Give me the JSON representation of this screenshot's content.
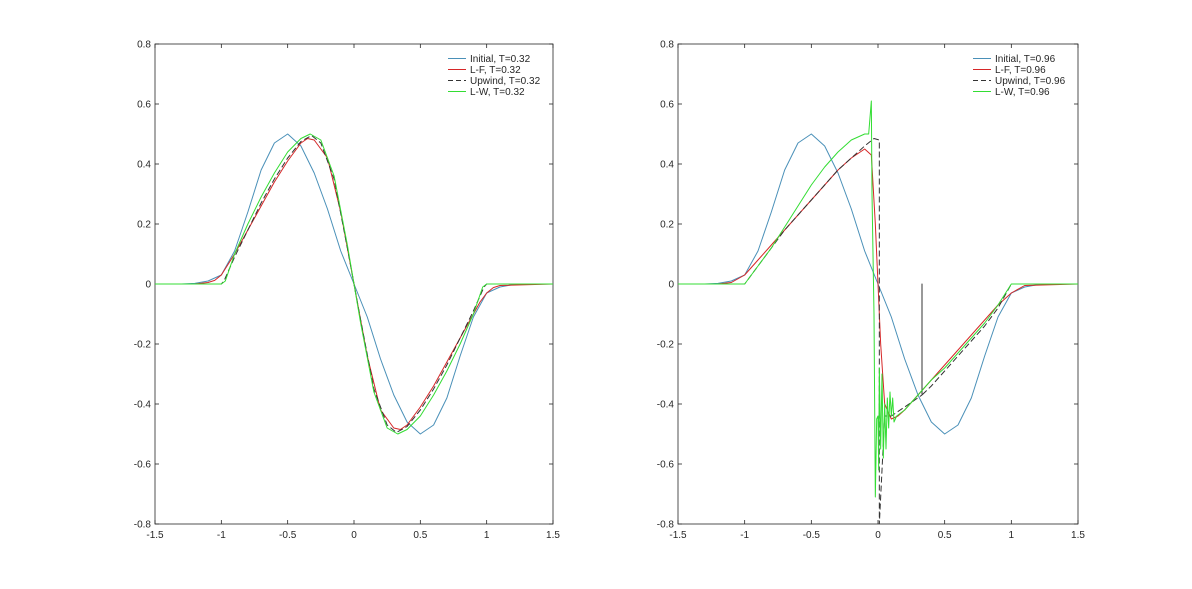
{
  "chart_data": [
    {
      "type": "line",
      "title": "",
      "xlabel": "",
      "ylabel": "",
      "xlim": [
        -1.5,
        1.5
      ],
      "ylim": [
        -0.8,
        0.8
      ],
      "xticks": [
        "-1.5",
        "-1",
        "-0.5",
        "0",
        "0.5",
        "1",
        "1.5"
      ],
      "yticks": [
        "-0.8",
        "-0.6",
        "-0.4",
        "-0.2",
        "0",
        "0.2",
        "0.4",
        "0.6",
        "0.8"
      ],
      "grid": false,
      "legend_position": "top-right",
      "series": [
        {
          "name": "Initial, T=0.32",
          "color": "#4a90b8",
          "dash": "solid",
          "x": [
            -1.5,
            -1.3,
            -1.2,
            -1.1,
            -1.0,
            -0.9,
            -0.8,
            -0.7,
            -0.6,
            -0.5,
            -0.4,
            -0.3,
            -0.2,
            -0.1,
            0.0,
            0.1,
            0.2,
            0.3,
            0.4,
            0.5,
            0.6,
            0.7,
            0.8,
            0.9,
            1.0,
            1.1,
            1.2,
            1.3,
            1.5
          ],
          "y": [
            0.0,
            0.0,
            0.002,
            0.01,
            0.03,
            0.11,
            0.24,
            0.38,
            0.47,
            0.5,
            0.46,
            0.37,
            0.25,
            0.11,
            0.0,
            -0.11,
            -0.25,
            -0.37,
            -0.46,
            -0.5,
            -0.47,
            -0.38,
            -0.24,
            -0.11,
            -0.03,
            -0.01,
            -0.002,
            0.0,
            0.0
          ]
        },
        {
          "name": "L-F, T=0.32",
          "color": "#d62728",
          "dash": "solid",
          "x": [
            -1.5,
            -1.2,
            -1.1,
            -1.05,
            -1.0,
            -0.9,
            -0.8,
            -0.7,
            -0.6,
            -0.5,
            -0.4,
            -0.35,
            -0.3,
            -0.2,
            -0.1,
            0.0,
            0.1,
            0.2,
            0.3,
            0.35,
            0.4,
            0.5,
            0.6,
            0.7,
            0.8,
            0.9,
            0.95,
            1.0,
            1.05,
            1.1,
            1.5
          ],
          "y": [
            0.0,
            0.0,
            0.005,
            0.012,
            0.03,
            0.1,
            0.18,
            0.26,
            0.34,
            0.41,
            0.47,
            0.485,
            0.48,
            0.42,
            0.24,
            0.0,
            -0.24,
            -0.42,
            -0.48,
            -0.485,
            -0.47,
            -0.41,
            -0.34,
            -0.26,
            -0.18,
            -0.1,
            -0.06,
            -0.03,
            -0.012,
            -0.005,
            0.0
          ]
        },
        {
          "name": "Upwind, T=0.32",
          "color": "#333333",
          "dash": "dashed",
          "x": [
            -1.5,
            -1.0,
            -0.98,
            -0.9,
            -0.8,
            -0.7,
            -0.6,
            -0.5,
            -0.4,
            -0.32,
            -0.25,
            -0.15,
            -0.05,
            0.0,
            0.05,
            0.15,
            0.25,
            0.32,
            0.4,
            0.5,
            0.6,
            0.7,
            0.8,
            0.9,
            0.98,
            1.0,
            1.5
          ],
          "y": [
            0.0,
            0.0,
            0.01,
            0.09,
            0.18,
            0.27,
            0.35,
            0.42,
            0.475,
            0.495,
            0.47,
            0.35,
            0.12,
            0.0,
            -0.12,
            -0.35,
            -0.47,
            -0.495,
            -0.475,
            -0.42,
            -0.35,
            -0.27,
            -0.18,
            -0.09,
            -0.01,
            0.0,
            0.0
          ]
        },
        {
          "name": "L-W, T=0.32",
          "color": "#33dd33",
          "dash": "solid",
          "x": [
            -1.5,
            -1.0,
            -0.97,
            -0.9,
            -0.8,
            -0.7,
            -0.6,
            -0.5,
            -0.4,
            -0.33,
            -0.25,
            -0.15,
            -0.05,
            0.0,
            0.05,
            0.15,
            0.25,
            0.33,
            0.4,
            0.5,
            0.6,
            0.7,
            0.8,
            0.9,
            0.97,
            1.0,
            1.5
          ],
          "y": [
            0.0,
            0.0,
            0.01,
            0.1,
            0.2,
            0.29,
            0.37,
            0.44,
            0.485,
            0.5,
            0.48,
            0.36,
            0.13,
            0.0,
            -0.13,
            -0.36,
            -0.48,
            -0.5,
            -0.485,
            -0.44,
            -0.37,
            -0.29,
            -0.2,
            -0.1,
            -0.01,
            0.0,
            0.0
          ]
        }
      ]
    },
    {
      "type": "line",
      "title": "",
      "xlabel": "",
      "ylabel": "",
      "xlim": [
        -1.5,
        1.5
      ],
      "ylim": [
        -0.8,
        0.8
      ],
      "xticks": [
        "-1.5",
        "-1",
        "-0.5",
        "0",
        "0.5",
        "1",
        "1.5"
      ],
      "yticks": [
        "-0.8",
        "-0.6",
        "-0.4",
        "-0.2",
        "0",
        "0.2",
        "0.4",
        "0.6",
        "0.8"
      ],
      "grid": false,
      "legend_position": "top-right",
      "series": [
        {
          "name": "Initial, T=0.96",
          "color": "#4a90b8",
          "dash": "solid",
          "x": [
            -1.5,
            -1.3,
            -1.2,
            -1.1,
            -1.0,
            -0.9,
            -0.8,
            -0.7,
            -0.6,
            -0.5,
            -0.4,
            -0.3,
            -0.2,
            -0.1,
            0.0,
            0.1,
            0.2,
            0.3,
            0.4,
            0.5,
            0.6,
            0.7,
            0.8,
            0.9,
            1.0,
            1.1,
            1.2,
            1.3,
            1.5
          ],
          "y": [
            0.0,
            0.0,
            0.002,
            0.01,
            0.03,
            0.11,
            0.24,
            0.38,
            0.47,
            0.5,
            0.46,
            0.37,
            0.25,
            0.11,
            0.0,
            -0.11,
            -0.25,
            -0.37,
            -0.46,
            -0.5,
            -0.47,
            -0.38,
            -0.24,
            -0.11,
            -0.03,
            -0.01,
            -0.002,
            0.0,
            0.0
          ]
        },
        {
          "name": "L-F, T=0.96",
          "color": "#d62728",
          "dash": "solid",
          "x": [
            -1.5,
            -1.2,
            -1.1,
            -1.0,
            -0.9,
            -0.8,
            -0.7,
            -0.6,
            -0.5,
            -0.4,
            -0.3,
            -0.2,
            -0.1,
            -0.05,
            -0.02,
            0.0,
            0.02,
            0.05,
            0.1,
            0.15,
            0.2,
            0.3,
            0.4,
            0.5,
            0.6,
            0.7,
            0.8,
            0.9,
            1.0,
            1.1,
            1.5
          ],
          "y": [
            0.0,
            0.0,
            0.005,
            0.03,
            0.08,
            0.13,
            0.18,
            0.23,
            0.28,
            0.33,
            0.38,
            0.42,
            0.45,
            0.43,
            0.2,
            0.0,
            -0.2,
            -0.4,
            -0.45,
            -0.44,
            -0.42,
            -0.37,
            -0.32,
            -0.27,
            -0.22,
            -0.17,
            -0.12,
            -0.07,
            -0.03,
            -0.005,
            0.0
          ]
        },
        {
          "name": "Upwind, T=0.96",
          "color": "#333333",
          "dash": "dashed",
          "x": [
            -1.5,
            -1.0,
            -0.9,
            -0.8,
            -0.7,
            -0.6,
            -0.5,
            -0.4,
            -0.3,
            -0.2,
            -0.1,
            -0.03,
            0.01,
            0.01,
            0.05,
            0.1,
            0.2,
            0.33,
            0.33,
            0.33,
            0.4,
            0.5,
            0.6,
            0.7,
            0.8,
            0.9,
            1.0,
            1.5
          ],
          "y": [
            0.0,
            0.0,
            0.06,
            0.12,
            0.18,
            0.23,
            0.28,
            0.33,
            0.38,
            0.42,
            0.46,
            0.485,
            0.48,
            -0.8,
            -0.44,
            -0.44,
            -0.41,
            -0.37,
            0.0,
            -0.37,
            -0.34,
            -0.29,
            -0.24,
            -0.19,
            -0.14,
            -0.08,
            0.0,
            0.0
          ]
        },
        {
          "name": "L-W, T=0.96",
          "color": "#33dd33",
          "dash": "solid",
          "x": [
            -1.5,
            -1.0,
            -0.9,
            -0.8,
            -0.7,
            -0.6,
            -0.5,
            -0.4,
            -0.3,
            -0.2,
            -0.1,
            -0.07,
            -0.05,
            -0.045,
            -0.03,
            -0.02,
            -0.01,
            0.0,
            0.005,
            0.01,
            0.02,
            0.03,
            0.04,
            0.05,
            0.06,
            0.07,
            0.08,
            0.09,
            0.1,
            0.11,
            0.12,
            0.14,
            0.2,
            0.3,
            0.4,
            0.5,
            0.6,
            0.7,
            0.8,
            0.9,
            1.0,
            1.5
          ],
          "y": [
            0.0,
            0.0,
            0.06,
            0.12,
            0.19,
            0.26,
            0.33,
            0.39,
            0.44,
            0.48,
            0.5,
            0.5,
            0.61,
            0.3,
            -0.1,
            -0.71,
            -0.45,
            -0.44,
            -0.62,
            -0.28,
            -0.55,
            -0.3,
            -0.58,
            -0.4,
            -0.55,
            -0.38,
            -0.48,
            -0.36,
            -0.44,
            -0.38,
            -0.46,
            -0.44,
            -0.42,
            -0.37,
            -0.32,
            -0.28,
            -0.23,
            -0.18,
            -0.13,
            -0.07,
            0.0,
            0.0
          ]
        }
      ]
    }
  ]
}
